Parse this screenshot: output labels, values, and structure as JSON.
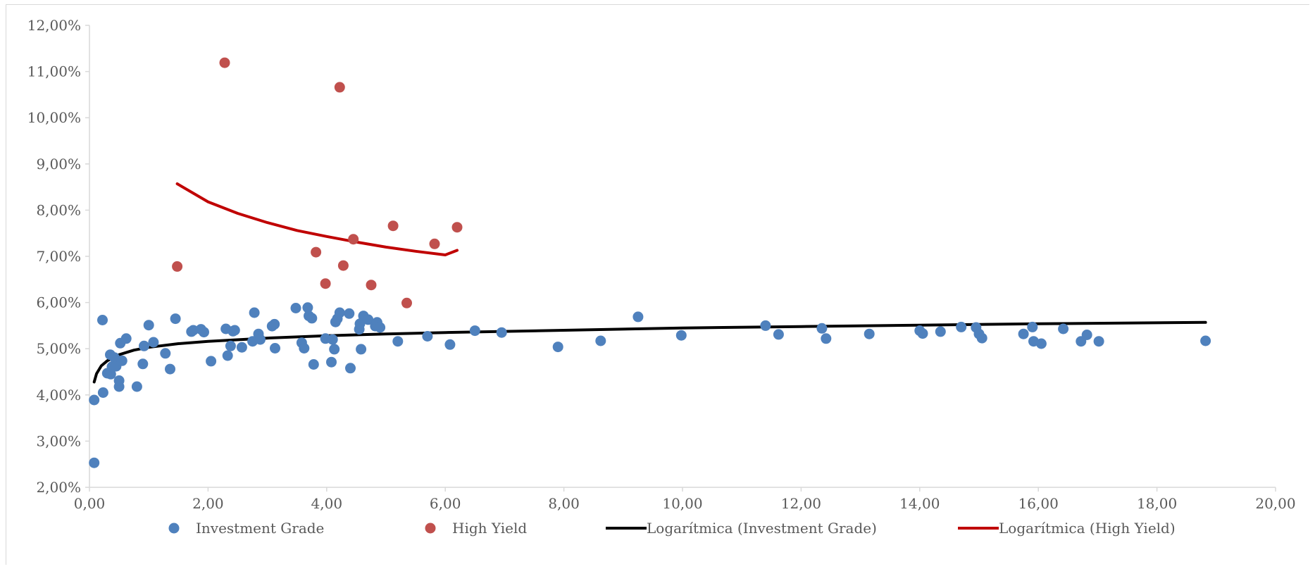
{
  "chart_data": {
    "type": "scatter",
    "title": "",
    "xlabel": "",
    "ylabel": "",
    "xlim": [
      0,
      20
    ],
    "ylim": [
      0.02,
      0.12
    ],
    "x_ticks": [
      0,
      2,
      4,
      6,
      8,
      10,
      12,
      14,
      16,
      18,
      20
    ],
    "x_tick_labels": [
      "0,00",
      "2,00",
      "4,00",
      "6,00",
      "8,00",
      "10,00",
      "12,00",
      "14,00",
      "16,00",
      "18,00",
      "20,00"
    ],
    "y_ticks": [
      0.02,
      0.03,
      0.04,
      0.05,
      0.06,
      0.07,
      0.08,
      0.09,
      0.1,
      0.11,
      0.12
    ],
    "y_tick_labels": [
      "2,00%",
      "3,00%",
      "4,00%",
      "5,00%",
      "6,00%",
      "7,00%",
      "8,00%",
      "9,00%",
      "10,00%",
      "11,00%",
      "12,00%"
    ],
    "grid": false,
    "legend_position": "bottom",
    "series": [
      {
        "name": "Investment Grade",
        "kind": "scatter",
        "color": "#4f81bd",
        "points": [
          [
            0.08,
            0.0389
          ],
          [
            0.08,
            0.0253
          ],
          [
            0.22,
            0.0562
          ],
          [
            0.23,
            0.0405
          ],
          [
            0.3,
            0.0447
          ],
          [
            0.35,
            0.0487
          ],
          [
            0.36,
            0.0445
          ],
          [
            0.38,
            0.0461
          ],
          [
            0.42,
            0.0481
          ],
          [
            0.45,
            0.0462
          ],
          [
            0.5,
            0.0418
          ],
          [
            0.5,
            0.0431
          ],
          [
            0.52,
            0.0512
          ],
          [
            0.55,
            0.0474
          ],
          [
            0.62,
            0.0522
          ],
          [
            0.8,
            0.0418
          ],
          [
            0.9,
            0.0467
          ],
          [
            0.92,
            0.0506
          ],
          [
            1.0,
            0.0551
          ],
          [
            1.08,
            0.0514
          ],
          [
            1.28,
            0.049
          ],
          [
            1.36,
            0.0456
          ],
          [
            1.45,
            0.0565
          ],
          [
            1.72,
            0.0537
          ],
          [
            1.75,
            0.054
          ],
          [
            1.88,
            0.0542
          ],
          [
            1.93,
            0.0536
          ],
          [
            2.05,
            0.0473
          ],
          [
            2.3,
            0.0543
          ],
          [
            2.33,
            0.0485
          ],
          [
            2.38,
            0.0506
          ],
          [
            2.42,
            0.0538
          ],
          [
            2.45,
            0.054
          ],
          [
            2.57,
            0.0503
          ],
          [
            2.75,
            0.0516
          ],
          [
            2.78,
            0.0578
          ],
          [
            2.85,
            0.0532
          ],
          [
            2.88,
            0.052
          ],
          [
            3.08,
            0.0549
          ],
          [
            3.12,
            0.0553
          ],
          [
            3.13,
            0.0501
          ],
          [
            3.48,
            0.0588
          ],
          [
            3.58,
            0.0513
          ],
          [
            3.62,
            0.0501
          ],
          [
            3.68,
            0.0589
          ],
          [
            3.7,
            0.0571
          ],
          [
            3.75,
            0.0566
          ],
          [
            3.78,
            0.0466
          ],
          [
            3.98,
            0.0522
          ],
          [
            4.08,
            0.0471
          ],
          [
            4.1,
            0.052
          ],
          [
            4.13,
            0.0499
          ],
          [
            4.15,
            0.0558
          ],
          [
            4.18,
            0.0565
          ],
          [
            4.22,
            0.0578
          ],
          [
            4.38,
            0.0576
          ],
          [
            4.4,
            0.0458
          ],
          [
            4.55,
            0.0542
          ],
          [
            4.56,
            0.0554
          ],
          [
            4.58,
            0.0499
          ],
          [
            4.62,
            0.0571
          ],
          [
            4.7,
            0.0563
          ],
          [
            4.82,
            0.0549
          ],
          [
            4.85,
            0.0557
          ],
          [
            4.9,
            0.0546
          ],
          [
            5.2,
            0.0516
          ],
          [
            5.7,
            0.0527
          ],
          [
            6.08,
            0.0509
          ],
          [
            6.5,
            0.0539
          ],
          [
            6.95,
            0.0535
          ],
          [
            7.9,
            0.0504
          ],
          [
            8.62,
            0.0517
          ],
          [
            9.25,
            0.0569
          ],
          [
            9.98,
            0.0529
          ],
          [
            11.4,
            0.055
          ],
          [
            11.62,
            0.0531
          ],
          [
            12.35,
            0.0544
          ],
          [
            12.42,
            0.0522
          ],
          [
            13.15,
            0.0532
          ],
          [
            14.0,
            0.0539
          ],
          [
            14.05,
            0.0533
          ],
          [
            14.35,
            0.0537
          ],
          [
            14.7,
            0.0547
          ],
          [
            14.95,
            0.0546
          ],
          [
            15.0,
            0.0532
          ],
          [
            15.05,
            0.0523
          ],
          [
            15.75,
            0.0532
          ],
          [
            15.9,
            0.0547
          ],
          [
            15.92,
            0.0516
          ],
          [
            16.05,
            0.0511
          ],
          [
            16.42,
            0.0543
          ],
          [
            16.72,
            0.0516
          ],
          [
            16.82,
            0.053
          ],
          [
            17.02,
            0.0516
          ],
          [
            18.82,
            0.0517
          ]
        ]
      },
      {
        "name": "High Yield",
        "kind": "scatter",
        "color": "#c0504d",
        "points": [
          [
            1.48,
            0.0678
          ],
          [
            2.28,
            0.1119
          ],
          [
            3.82,
            0.0709
          ],
          [
            3.98,
            0.0641
          ],
          [
            4.22,
            0.1066
          ],
          [
            4.28,
            0.068
          ],
          [
            4.45,
            0.0737
          ],
          [
            4.75,
            0.0638
          ],
          [
            5.12,
            0.0766
          ],
          [
            5.35,
            0.0599
          ],
          [
            5.82,
            0.0727
          ],
          [
            6.2,
            0.0763
          ]
        ]
      },
      {
        "name": "Logarítmica (Investment Grade)",
        "kind": "trendline",
        "color": "#000000",
        "points": [
          [
            0.08,
            0.0428
          ],
          [
            0.12,
            0.0446
          ],
          [
            0.2,
            0.0463
          ],
          [
            0.3,
            0.0474
          ],
          [
            0.5,
            0.0487
          ],
          [
            0.75,
            0.0497
          ],
          [
            1.0,
            0.0503
          ],
          [
            1.5,
            0.0511
          ],
          [
            2.0,
            0.0516
          ],
          [
            3.0,
            0.0523
          ],
          [
            4.0,
            0.0528
          ],
          [
            5.0,
            0.0532
          ],
          [
            6.0,
            0.0535
          ],
          [
            8.0,
            0.054
          ],
          [
            10.0,
            0.0545
          ],
          [
            12.0,
            0.0548
          ],
          [
            14.0,
            0.0551
          ],
          [
            16.0,
            0.0554
          ],
          [
            18.82,
            0.0557
          ]
        ]
      },
      {
        "name": "Logarítmica (High Yield)",
        "kind": "trendline",
        "color": "#c00000",
        "points": [
          [
            1.48,
            0.0857
          ],
          [
            2.0,
            0.0818
          ],
          [
            2.5,
            0.0793
          ],
          [
            3.0,
            0.0773
          ],
          [
            3.5,
            0.0756
          ],
          [
            4.0,
            0.0743
          ],
          [
            4.5,
            0.0731
          ],
          [
            5.0,
            0.072
          ],
          [
            5.5,
            0.0711
          ],
          [
            6.0,
            0.0703
          ],
          [
            6.2,
            0.0713
          ]
        ]
      }
    ]
  }
}
